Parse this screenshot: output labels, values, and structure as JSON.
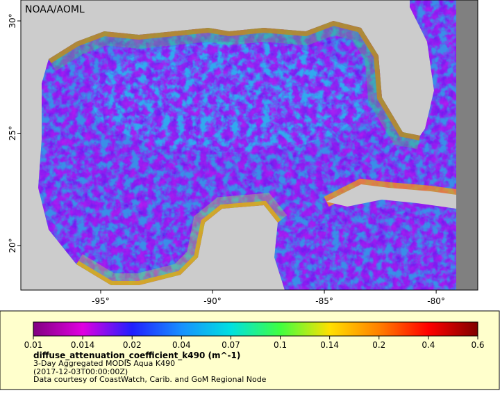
{
  "map": {
    "credit": "NOAA/AOML",
    "xlim": [
      -98.57,
      -78.14
    ],
    "ylim": [
      18.02,
      30.93
    ],
    "xticks": [
      {
        "value": -95,
        "label": "-95°"
      },
      {
        "value": -90,
        "label": "-90°"
      },
      {
        "value": -85,
        "label": "-85°"
      },
      {
        "value": -80,
        "label": "-80°"
      }
    ],
    "yticks": [
      {
        "value": 20,
        "label": "20°"
      },
      {
        "value": 25,
        "label": "25°"
      },
      {
        "value": 30,
        "label": "30°"
      }
    ]
  },
  "legend": {
    "colorbar": {
      "ticks": [
        0.01,
        0.014,
        0.02,
        0.04,
        0.07,
        0.1,
        0.14,
        0.2,
        0.4,
        0.6
      ],
      "colors": [
        "#800080",
        "#e000e0",
        "#2020ff",
        "#1890ff",
        "#00e0e0",
        "#40ff40",
        "#ffe000",
        "#ff8000",
        "#ff0000",
        "#800000"
      ]
    },
    "variable": "diffuse_attenuation_coefficient_k490 (m^-1)",
    "description": "3-Day Aggregated MODIS Aqua K490",
    "time": "(2017-12-03T00:00:00Z)",
    "source": "Data courtesy of CoastWatch, Carib. and GoM Regional Node"
  }
}
